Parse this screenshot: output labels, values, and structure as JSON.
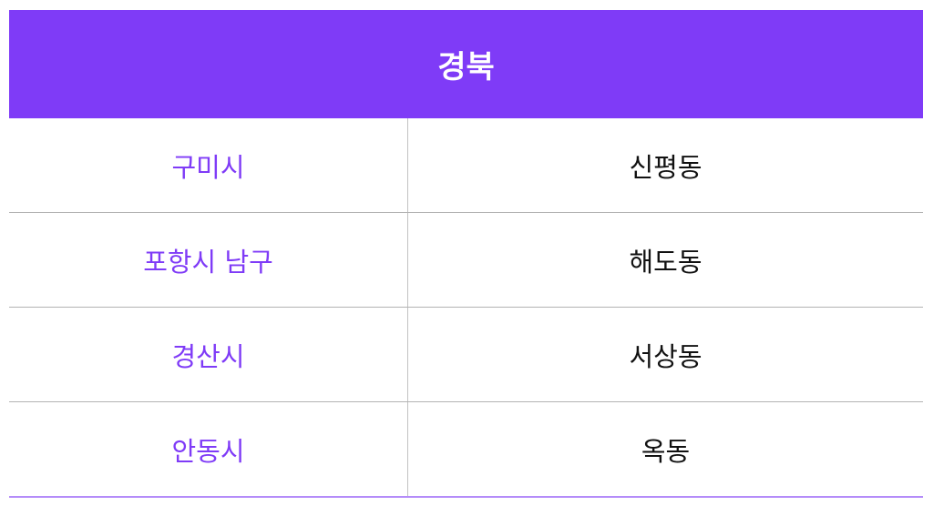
{
  "title": "경북",
  "colors": {
    "accent": "#7f3bf7"
  },
  "rows": [
    {
      "city": "구미시",
      "dong": "신평동"
    },
    {
      "city": "포항시 남구",
      "dong": "해도동"
    },
    {
      "city": "경산시",
      "dong": "서상동"
    },
    {
      "city": "안동시",
      "dong": "옥동"
    }
  ]
}
